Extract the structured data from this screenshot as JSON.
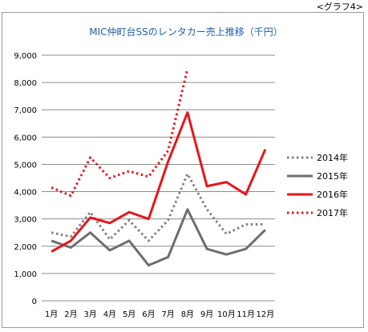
{
  "figure_caption": "<グラフ4>",
  "chart_data": {
    "type": "line",
    "title": "MIC仲町台SSのレンタカー売上推移（千円）",
    "xlabel": "",
    "ylabel": "",
    "categories": [
      "1月",
      "2月",
      "3月",
      "4月",
      "5月",
      "6月",
      "7月",
      "8月",
      "9月",
      "10月",
      "11月",
      "12月"
    ],
    "ylim": [
      0,
      9000
    ],
    "yticks": [
      0,
      1000,
      2000,
      3000,
      4000,
      5000,
      6000,
      7000,
      8000,
      9000
    ],
    "ytick_labels": [
      "0",
      "1,000",
      "2,000",
      "3,000",
      "4,000",
      "5,000",
      "6,000",
      "7,000",
      "8,000",
      "9,000"
    ],
    "grid": true,
    "legend_position": "right",
    "series": [
      {
        "name": "2014年",
        "style": "dotted",
        "color": "#808080",
        "values": [
          2500,
          2350,
          3250,
          2250,
          2950,
          2200,
          2950,
          4650,
          3350,
          2450,
          2800,
          2800
        ]
      },
      {
        "name": "2015年",
        "style": "solid",
        "color": "#6e6e6e",
        "values": [
          2200,
          1950,
          2500,
          1850,
          2200,
          1300,
          1600,
          3350,
          1900,
          1700,
          1900,
          2600
        ]
      },
      {
        "name": "2016年",
        "style": "solid",
        "color": "#e8151b",
        "values": [
          1800,
          2200,
          3050,
          2850,
          3250,
          3000,
          5100,
          6900,
          4200,
          4350,
          3900,
          5550
        ]
      },
      {
        "name": "2017年",
        "style": "dotted",
        "color": "#e8151b",
        "values": [
          4150,
          3850,
          5250,
          4500,
          4750,
          4550,
          5500,
          8500,
          null,
          null,
          null,
          null
        ]
      }
    ]
  }
}
